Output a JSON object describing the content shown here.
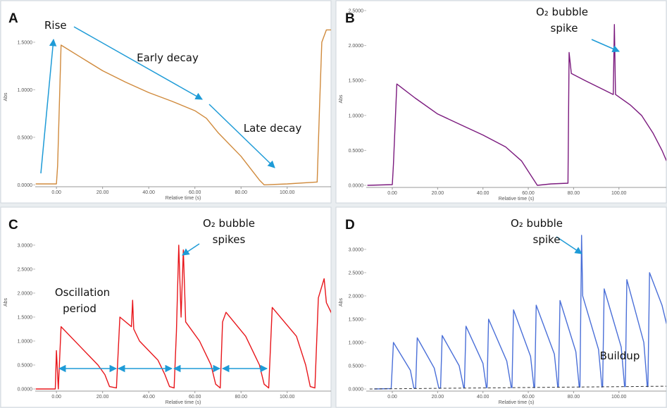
{
  "chart_data": [
    {
      "type": "line",
      "label": "A",
      "xlabel": "Relative time (s)",
      "ylabel": "Abs",
      "xlim": [
        -9.2,
        119
      ],
      "ylim": [
        -0.02,
        1.87
      ],
      "xticks": [
        {
          "value": 0,
          "label": "0.00"
        },
        {
          "value": 20,
          "label": "20.00"
        },
        {
          "value": 40,
          "label": "40.00"
        },
        {
          "value": 60,
          "label": "60.00"
        },
        {
          "value": 80,
          "label": "80.00"
        },
        {
          "value": 100,
          "label": "100.00"
        }
      ],
      "yticks": [
        {
          "value": 0,
          "label": "0.0000"
        },
        {
          "value": 0.5,
          "label": "0.5000"
        },
        {
          "value": 1,
          "label": "1.0000"
        },
        {
          "value": 1.5,
          "label": "1.5000"
        }
      ],
      "series": [
        {
          "color": "#d08a3c",
          "x": [
            -9,
            0,
            0.5,
            2,
            10,
            20,
            30,
            40,
            50,
            60,
            65,
            70,
            80,
            88,
            90,
            100,
            113,
            114,
            115,
            117,
            119
          ],
          "values": [
            0.01,
            0.01,
            0.2,
            1.47,
            1.35,
            1.2,
            1.08,
            0.97,
            0.88,
            0.78,
            0.7,
            0.55,
            0.3,
            0.05,
            0.0,
            0.01,
            0.03,
            0.8,
            1.5,
            1.63,
            1.63
          ]
        }
      ],
      "annotations": [
        "Rise",
        "Early decay",
        "Late decay"
      ]
    },
    {
      "type": "line",
      "label": "B",
      "xlabel": "Relative time (s)",
      "ylabel": "Abs",
      "xlim": [
        -11.5,
        120.9
      ],
      "ylim": [
        -0.03,
        2.5
      ],
      "xticks": [
        {
          "value": 0,
          "label": "0.00"
        },
        {
          "value": 20,
          "label": "20.00"
        },
        {
          "value": 40,
          "label": "40.00"
        },
        {
          "value": 60,
          "label": "60.00"
        },
        {
          "value": 80,
          "label": "80.00"
        },
        {
          "value": 100,
          "label": "100.00"
        }
      ],
      "yticks": [
        {
          "value": 0,
          "label": "0.0000"
        },
        {
          "value": 0.5,
          "label": "0.5000"
        },
        {
          "value": 1,
          "label": "1.0000"
        },
        {
          "value": 1.5,
          "label": "1.5000"
        },
        {
          "value": 2,
          "label": "2.0000"
        },
        {
          "value": 2.5,
          "label": "2.5000"
        }
      ],
      "series": [
        {
          "color": "#7b1a7e",
          "x": [
            -11,
            0,
            0.5,
            2,
            10,
            20,
            30,
            40,
            50,
            57,
            62,
            64,
            70,
            77.5,
            78,
            79,
            85,
            97.5,
            98,
            98.5,
            105,
            110,
            115,
            119,
            121
          ],
          "values": [
            0.0,
            0.01,
            0.3,
            1.45,
            1.25,
            1.02,
            0.87,
            0.72,
            0.55,
            0.35,
            0.1,
            0.0,
            0.02,
            0.03,
            1.9,
            1.6,
            1.5,
            1.3,
            2.3,
            1.3,
            1.15,
            1.0,
            0.75,
            0.5,
            0.35
          ]
        }
      ],
      "annotations": [
        "O₂ bubble",
        "spike"
      ]
    },
    {
      "type": "line",
      "label": "C",
      "xlabel": "Relative time (s)",
      "ylabel": "Abs",
      "xlim": [
        -9.2,
        119
      ],
      "ylim": [
        -0.044,
        3.66
      ],
      "xticks": [
        {
          "value": 0,
          "label": "0.00"
        },
        {
          "value": 20,
          "label": "20.00"
        },
        {
          "value": 40,
          "label": "40.00"
        },
        {
          "value": 60,
          "label": "60.00"
        },
        {
          "value": 80,
          "label": "80.00"
        },
        {
          "value": 100,
          "label": "100.00"
        }
      ],
      "yticks": [
        {
          "value": 0,
          "label": "0.0000"
        },
        {
          "value": 0.5,
          "label": "0.5000"
        },
        {
          "value": 1,
          "label": "1.0000"
        },
        {
          "value": 1.5,
          "label": "1.5000"
        },
        {
          "value": 2,
          "label": "2.0000"
        },
        {
          "value": 2.5,
          "label": "2.5000"
        },
        {
          "value": 3,
          "label": "3.0000"
        }
      ],
      "series": [
        {
          "color": "#e8161b",
          "x": [
            -9,
            -0.5,
            0,
            0.8,
            2,
            10,
            18,
            21,
            23,
            26,
            27.5,
            32.5,
            33,
            33.5,
            36,
            44,
            47,
            49,
            51,
            52,
            53,
            54,
            55,
            56,
            62,
            67,
            69,
            71,
            72,
            73.5,
            82,
            88,
            90,
            92,
            93.5,
            104,
            108,
            110,
            112,
            113.5,
            116,
            117,
            121
          ],
          "values": [
            0.0,
            0.0,
            0.8,
            0.0,
            1.3,
            0.9,
            0.5,
            0.3,
            0.05,
            0.02,
            1.5,
            1.3,
            1.85,
            1.25,
            1.0,
            0.6,
            0.3,
            0.05,
            0.02,
            1.2,
            3.0,
            1.5,
            2.9,
            1.4,
            1.0,
            0.5,
            0.1,
            0.02,
            1.4,
            1.6,
            1.1,
            0.5,
            0.1,
            0.02,
            1.7,
            1.1,
            0.5,
            0.05,
            0.02,
            1.9,
            2.3,
            1.8,
            1.4
          ]
        }
      ],
      "annotations": [
        "O₂ bubble",
        "spikes",
        "Oscillation",
        "period"
      ]
    },
    {
      "type": "line",
      "label": "D",
      "xlabel": "Relative time (s)",
      "ylabel": "Abs",
      "xlim": [
        -11.5,
        120.9
      ],
      "ylim": [
        -0.045,
        3.77
      ],
      "xticks": [
        {
          "value": 0,
          "label": "0.00"
        },
        {
          "value": 20,
          "label": "20.00"
        },
        {
          "value": 40,
          "label": "40.00"
        },
        {
          "value": 60,
          "label": "60.00"
        },
        {
          "value": 80,
          "label": "80.00"
        },
        {
          "value": 100,
          "label": "100.00"
        }
      ],
      "yticks": [
        {
          "value": 0,
          "label": "0.0000"
        },
        {
          "value": 0.5,
          "label": "0.5000"
        },
        {
          "value": 1,
          "label": "1.0000"
        },
        {
          "value": 1.5,
          "label": "1.5000"
        },
        {
          "value": 2,
          "label": "2.0000"
        },
        {
          "value": 2.5,
          "label": "2.5000"
        },
        {
          "value": 3,
          "label": "3.0000"
        }
      ],
      "series": [
        {
          "color": "#4a6fd8",
          "x": [
            -8,
            -0.5,
            0.5,
            8,
            9.5,
            10.3,
            11,
            18.5,
            20.5,
            21.3,
            22,
            29.5,
            31.5,
            31.8,
            32.5,
            40,
            41.5,
            41.8,
            42.5,
            50.5,
            52.5,
            52.8,
            53.5,
            61,
            62.5,
            62.8,
            63.5,
            71.5,
            73,
            73.3,
            74,
            81,
            82.5,
            82.8,
            83.5,
            84,
            91,
            92.5,
            92.8,
            93.5,
            101,
            102.5,
            102.8,
            103.5,
            111,
            112.5,
            112.8,
            113.5,
            119,
            121
          ],
          "values": [
            0.0,
            0.01,
            1.0,
            0.4,
            0.02,
            0.02,
            1.1,
            0.45,
            0.02,
            0.02,
            1.15,
            0.5,
            0.02,
            0.03,
            1.35,
            0.55,
            0.03,
            0.03,
            1.5,
            0.6,
            0.03,
            0.03,
            1.7,
            0.7,
            0.03,
            0.03,
            1.8,
            0.75,
            0.04,
            0.04,
            1.9,
            0.8,
            0.04,
            0.04,
            3.3,
            2.0,
            0.85,
            0.04,
            0.05,
            2.15,
            0.9,
            0.05,
            0.05,
            2.35,
            1.0,
            0.05,
            0.05,
            2.5,
            1.8,
            1.4
          ]
        },
        {
          "color": "#333333",
          "dashed": true,
          "x": [
            -10,
            121
          ],
          "values": [
            0.0,
            0.06
          ]
        }
      ],
      "annotations": [
        "O₂ bubble",
        "spike",
        "Buildup"
      ]
    }
  ]
}
